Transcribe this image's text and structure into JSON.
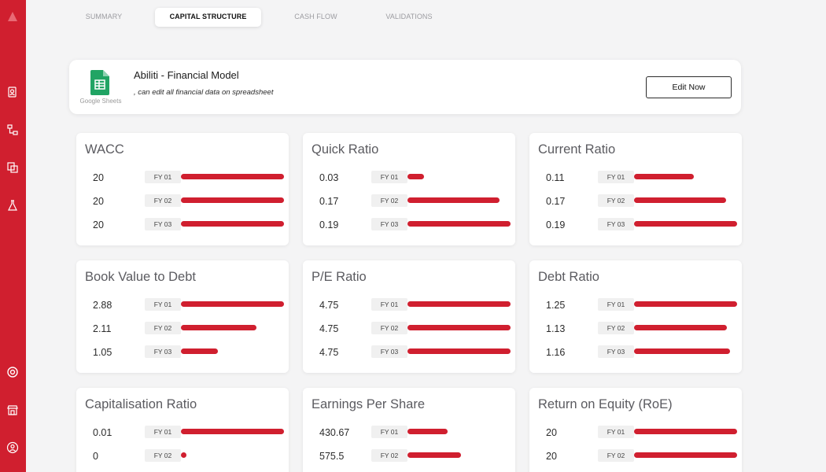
{
  "tabs": [
    {
      "label": "SUMMARY",
      "active": false
    },
    {
      "label": "CAPITAL STRUCTURE",
      "active": true
    },
    {
      "label": "CASH FLOW",
      "active": false
    },
    {
      "label": "VALIDATIONS",
      "active": false
    }
  ],
  "sidebar": {
    "icons": [
      "logo-icon",
      "contacts-icon",
      "hierarchy-icon",
      "copy-icon",
      "flask-icon",
      "target-icon",
      "store-icon",
      "user-icon"
    ]
  },
  "banner": {
    "logo_caption": "Google Sheets",
    "title": "Abiliti - Financial Model",
    "subtitle": ", can edit all financial data on spreadsheet",
    "button_label": "Edit Now"
  },
  "colors": {
    "accent": "#d01f2f",
    "label_bg": "#f0f0f0"
  },
  "cards": [
    {
      "title": "WACC",
      "rows": [
        {
          "value": "20",
          "label": "FY 01",
          "fill": 1.0
        },
        {
          "value": "20",
          "label": "FY 02",
          "fill": 1.0
        },
        {
          "value": "20",
          "label": "FY 03",
          "fill": 1.0
        }
      ]
    },
    {
      "title": "Quick Ratio",
      "rows": [
        {
          "value": "0.03",
          "label": "FY 01",
          "fill": 0.16
        },
        {
          "value": "0.17",
          "label": "FY 02",
          "fill": 0.89
        },
        {
          "value": "0.19",
          "label": "FY 03",
          "fill": 1.0
        }
      ]
    },
    {
      "title": "Current Ratio",
      "rows": [
        {
          "value": "0.11",
          "label": "FY 01",
          "fill": 0.58
        },
        {
          "value": "0.17",
          "label": "FY 02",
          "fill": 0.89
        },
        {
          "value": "0.19",
          "label": "FY 03",
          "fill": 1.0
        }
      ]
    },
    {
      "title": "Book Value to Debt",
      "rows": [
        {
          "value": "2.88",
          "label": "FY 01",
          "fill": 1.0
        },
        {
          "value": "2.11",
          "label": "FY 02",
          "fill": 0.73
        },
        {
          "value": "1.05",
          "label": "FY 03",
          "fill": 0.36
        }
      ]
    },
    {
      "title": "P/E Ratio",
      "rows": [
        {
          "value": "4.75",
          "label": "FY 01",
          "fill": 1.0
        },
        {
          "value": "4.75",
          "label": "FY 02",
          "fill": 1.0
        },
        {
          "value": "4.75",
          "label": "FY 03",
          "fill": 1.0
        }
      ]
    },
    {
      "title": "Debt Ratio",
      "rows": [
        {
          "value": "1.25",
          "label": "FY 01",
          "fill": 1.0
        },
        {
          "value": "1.13",
          "label": "FY 02",
          "fill": 0.9
        },
        {
          "value": "1.16",
          "label": "FY 03",
          "fill": 0.93
        }
      ]
    },
    {
      "title": "Capitalisation Ratio",
      "rows": [
        {
          "value": "0.01",
          "label": "FY 01",
          "fill": 1.0
        },
        {
          "value": "0",
          "label": "FY 02",
          "fill": 0.0
        }
      ]
    },
    {
      "title": "Earnings Per Share",
      "rows": [
        {
          "value": "430.67",
          "label": "FY 01",
          "fill": 0.39
        },
        {
          "value": "575.5",
          "label": "FY 02",
          "fill": 0.52
        }
      ]
    },
    {
      "title": "Return on Equity (RoE)",
      "rows": [
        {
          "value": "20",
          "label": "FY 01",
          "fill": 1.0
        },
        {
          "value": "20",
          "label": "FY 02",
          "fill": 1.0
        }
      ]
    }
  ]
}
